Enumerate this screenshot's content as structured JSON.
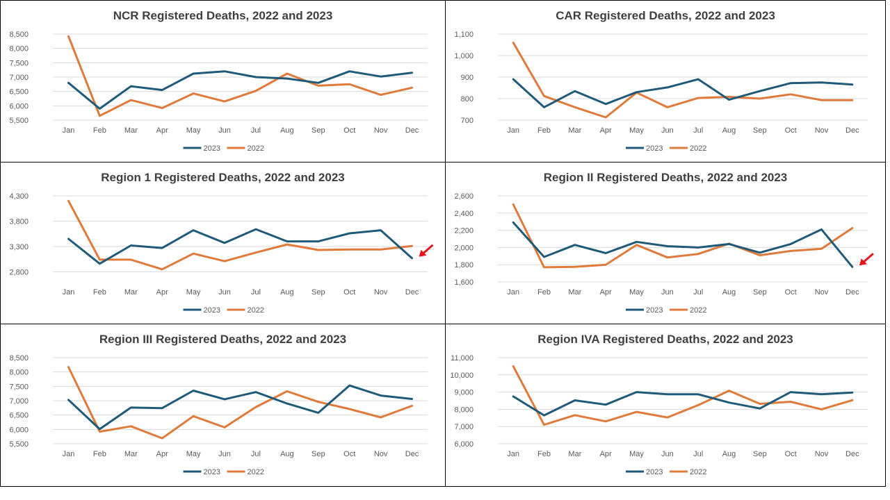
{
  "colors": {
    "s2023": "#1f5a78",
    "s2022": "#e07a3a",
    "arrow": "#e8141c"
  },
  "legend": [
    "2023",
    "2022"
  ],
  "chart_data": [
    {
      "type": "line",
      "title": "NCR Registered Deaths, 2022 and 2023",
      "categories": [
        "Jan",
        "Feb",
        "Mar",
        "Apr",
        "May",
        "Jun",
        "Jul",
        "Aug",
        "Sep",
        "Oct",
        "Nov",
        "Dec"
      ],
      "ylim": [
        5500,
        8500
      ],
      "yticks": [
        "5,500",
        "6,000",
        "6,500",
        "7,000",
        "7,500",
        "8,000",
        "8,500"
      ],
      "ytick_values": [
        5500,
        6000,
        6500,
        7000,
        7500,
        8000,
        8500
      ],
      "series": [
        {
          "name": "2023",
          "values": [
            6800,
            5900,
            6680,
            6550,
            7120,
            7200,
            7000,
            6950,
            6800,
            7200,
            7020,
            7150
          ]
        },
        {
          "name": "2022",
          "values": [
            8420,
            5650,
            6200,
            5920,
            6430,
            6150,
            6520,
            7120,
            6700,
            6750,
            6380,
            6630
          ]
        }
      ],
      "grid": true,
      "legend": "bottom",
      "arrow": false
    },
    {
      "type": "line",
      "title": "CAR Registered Deaths, 2022 and 2023",
      "categories": [
        "Jan",
        "Feb",
        "Mar",
        "Apr",
        "May",
        "Jun",
        "Jul",
        "Aug",
        "Sep",
        "Oct",
        "Nov",
        "Dec"
      ],
      "ylim": [
        700,
        1100
      ],
      "yticks": [
        "700",
        "800",
        "900",
        "1,000",
        "1,100"
      ],
      "ytick_values": [
        700,
        800,
        900,
        1000,
        1100
      ],
      "series": [
        {
          "name": "2023",
          "values": [
            890,
            760,
            835,
            775,
            830,
            852,
            890,
            795,
            835,
            872,
            875,
            865
          ]
        },
        {
          "name": "2022",
          "values": [
            1060,
            812,
            760,
            713,
            828,
            760,
            803,
            808,
            800,
            820,
            793,
            793
          ]
        }
      ],
      "grid": true,
      "legend": "bottom",
      "arrow": false
    },
    {
      "type": "line",
      "title": "Region 1  Registered Deaths, 2022 and 2023",
      "categories": [
        "Jan",
        "Feb",
        "Mar",
        "Apr",
        "May",
        "Jun",
        "Jul",
        "Aug",
        "Sep",
        "Oct",
        "Nov",
        "Dec"
      ],
      "ylim": [
        2600,
        4300
      ],
      "yticks": [
        "2,800",
        "3,300",
        "3,800",
        "4,300"
      ],
      "ytick_values": [
        2800,
        3300,
        3800,
        4300
      ],
      "series": [
        {
          "name": "2023",
          "values": [
            3450,
            2960,
            3320,
            3270,
            3620,
            3370,
            3640,
            3400,
            3400,
            3560,
            3620,
            3070
          ]
        },
        {
          "name": "2022",
          "values": [
            4200,
            3040,
            3040,
            2850,
            3160,
            3010,
            3180,
            3340,
            3230,
            3240,
            3240,
            3310
          ]
        }
      ],
      "grid": true,
      "legend": "bottom",
      "arrow": true
    },
    {
      "type": "line",
      "title": "Region II  Registered Deaths, 2022 and 2023",
      "categories": [
        "Jan",
        "Feb",
        "Mar",
        "Apr",
        "May",
        "Jun",
        "Jul",
        "Aug",
        "Sep",
        "Oct",
        "Nov",
        "Dec"
      ],
      "ylim": [
        1600,
        2600
      ],
      "yticks": [
        "1,600",
        "1,800",
        "2,000",
        "2,200",
        "2,400",
        "2,600"
      ],
      "ytick_values": [
        1600,
        1800,
        2000,
        2200,
        2400,
        2600
      ],
      "series": [
        {
          "name": "2023",
          "values": [
            2290,
            1890,
            2030,
            1935,
            2065,
            2015,
            2000,
            2040,
            1940,
            2040,
            2210,
            1775
          ]
        },
        {
          "name": "2022",
          "values": [
            2500,
            1770,
            1775,
            1800,
            2030,
            1885,
            1925,
            2045,
            1910,
            1960,
            1985,
            2225
          ]
        }
      ],
      "grid": true,
      "legend": "bottom",
      "arrow": true
    },
    {
      "type": "line",
      "title": "Region III  Registered Deaths, 2022 and 2023",
      "categories": [
        "Jan",
        "Feb",
        "Mar",
        "Apr",
        "May",
        "Jun",
        "Jul",
        "Aug",
        "Sep",
        "Oct",
        "Nov",
        "Dec"
      ],
      "ylim": [
        5500,
        8500
      ],
      "yticks": [
        "5,500",
        "6,000",
        "6,500",
        "7,000",
        "7,500",
        "8,000",
        "8,500"
      ],
      "ytick_values": [
        5500,
        6000,
        6500,
        7000,
        7500,
        8000,
        8500
      ],
      "series": [
        {
          "name": "2023",
          "values": [
            7030,
            6010,
            6760,
            6740,
            7350,
            7050,
            7300,
            6900,
            6580,
            7530,
            7180,
            7060
          ]
        },
        {
          "name": "2022",
          "values": [
            8170,
            5920,
            6110,
            5690,
            6460,
            6070,
            6780,
            7330,
            6960,
            6710,
            6420,
            6820
          ]
        }
      ],
      "grid": true,
      "legend": "bottom",
      "arrow": false
    },
    {
      "type": "line",
      "title": "Region IVA  Registered Deaths, 2022 and 2023",
      "categories": [
        "Jan",
        "Feb",
        "Mar",
        "Apr",
        "May",
        "Jun",
        "Jul",
        "Aug",
        "Sep",
        "Oct",
        "Nov",
        "Dec"
      ],
      "ylim": [
        6000,
        11000
      ],
      "yticks": [
        "6,000",
        "7,000",
        "8,000",
        "9,000",
        "10,000",
        "11,000"
      ],
      "ytick_values": [
        6000,
        7000,
        8000,
        9000,
        10000,
        11000
      ],
      "series": [
        {
          "name": "2023",
          "values": [
            8750,
            7650,
            8520,
            8270,
            9000,
            8870,
            8870,
            8390,
            8050,
            9000,
            8870,
            8970
          ]
        },
        {
          "name": "2022",
          "values": [
            10500,
            7100,
            7660,
            7300,
            7850,
            7530,
            8240,
            9080,
            8320,
            8440,
            8000,
            8530
          ]
        }
      ],
      "grid": true,
      "legend": "bottom",
      "arrow": false
    }
  ]
}
